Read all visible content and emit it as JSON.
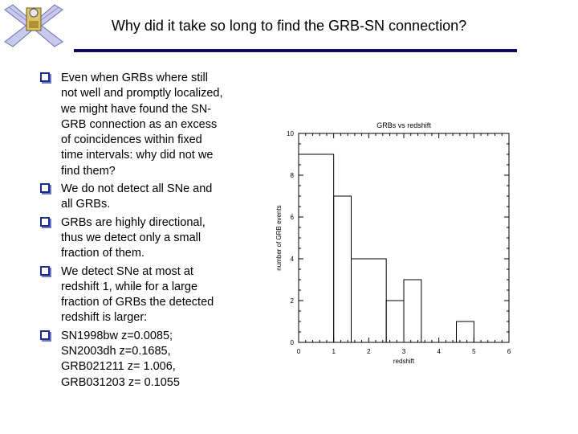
{
  "slide": {
    "title": "Why did it take so long to find the GRB-SN connection?",
    "logo_icon": "satellite-icon",
    "accent_color": "#0b0b63",
    "bullet_color": "#1a2b8c"
  },
  "bullets": [
    {
      "lines": [
        "Even when GRBs where still",
        "not well and promptly localized,",
        "we might have found the SN-",
        "GRB connection as an excess",
        "of coincidences within fixed",
        "time intervals: why did not we",
        "find them?"
      ]
    },
    {
      "lines": [
        "We do not detect all SNe and",
        "all GRBs."
      ]
    },
    {
      "lines": [
        "GRBs are highly directional,",
        "thus we detect only a small",
        "fraction of them."
      ]
    },
    {
      "lines": [
        "We detect SNe at most at",
        "redshift 1, while for a large",
        "fraction of GRBs the detected",
        "redshift is larger:"
      ]
    },
    {
      "lines": [
        "SN1998bw   z=0.0085;",
        "SN2003dh    z=0.1685,",
        "GRB021211 z= 1.006,",
        "GRB031203 z= 0.1055"
      ]
    }
  ],
  "chart_data": {
    "type": "bar",
    "title": "GRBs vs redshift",
    "xlabel": "redshift",
    "ylabel": "number of GRB events",
    "xlim": [
      0,
      6
    ],
    "ylim": [
      0,
      10
    ],
    "x_ticks": [
      "0",
      "1",
      "2",
      "3",
      "4",
      "5",
      "6"
    ],
    "y_ticks": [
      "0",
      "2",
      "4",
      "6",
      "8",
      "10"
    ],
    "bin_edges": [
      0,
      1,
      1.5,
      2.5,
      3,
      3.5,
      4.5,
      5
    ],
    "values": [
      9,
      7,
      4,
      2,
      3,
      0,
      1
    ],
    "grid": false,
    "line_color": "#000000"
  }
}
